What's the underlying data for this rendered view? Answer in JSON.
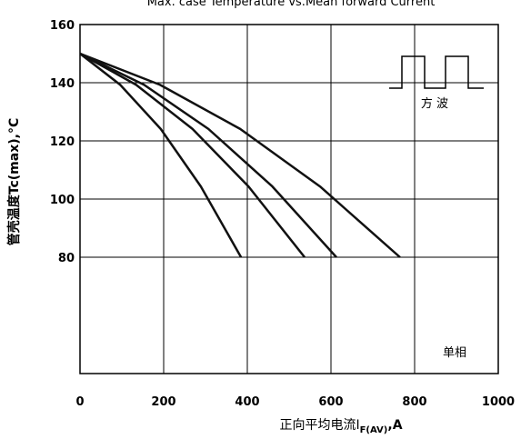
{
  "chart_data": {
    "type": "line",
    "title": "Max. case Temperature vs.Mean forward Current",
    "y_label": "管壳温度Tc(max),°C",
    "x_label": {
      "text": "正向平均电流I",
      "subscript": "F(AV)",
      "suffix": ",A"
    },
    "inset_label": "方 波",
    "annotations": [
      "单相"
    ],
    "xlim": [
      0,
      1000
    ],
    "xticks": [
      0,
      200,
      400,
      600,
      800,
      1000
    ],
    "ylim": [
      40,
      160
    ],
    "yticks": [
      80,
      100,
      120,
      140,
      160
    ],
    "grid": true,
    "series": [
      {
        "color": "#111111",
        "x": [
          0,
          96,
          193,
          289,
          385
        ],
        "values": [
          150,
          139.3,
          124.1,
          104.3,
          80
        ]
      },
      {
        "color": "#111111",
        "x": [
          0,
          134,
          269,
          403,
          537
        ],
        "values": [
          150,
          139.3,
          124.1,
          104.3,
          80
        ]
      },
      {
        "color": "#111111",
        "x": [
          0,
          153,
          307,
          460,
          613
        ],
        "values": [
          150,
          139.3,
          124.1,
          104.3,
          80
        ]
      },
      {
        "color": "#111111",
        "x": [
          0,
          191,
          383,
          574,
          765
        ],
        "values": [
          150,
          139.3,
          124.1,
          104.3,
          80
        ]
      }
    ]
  }
}
